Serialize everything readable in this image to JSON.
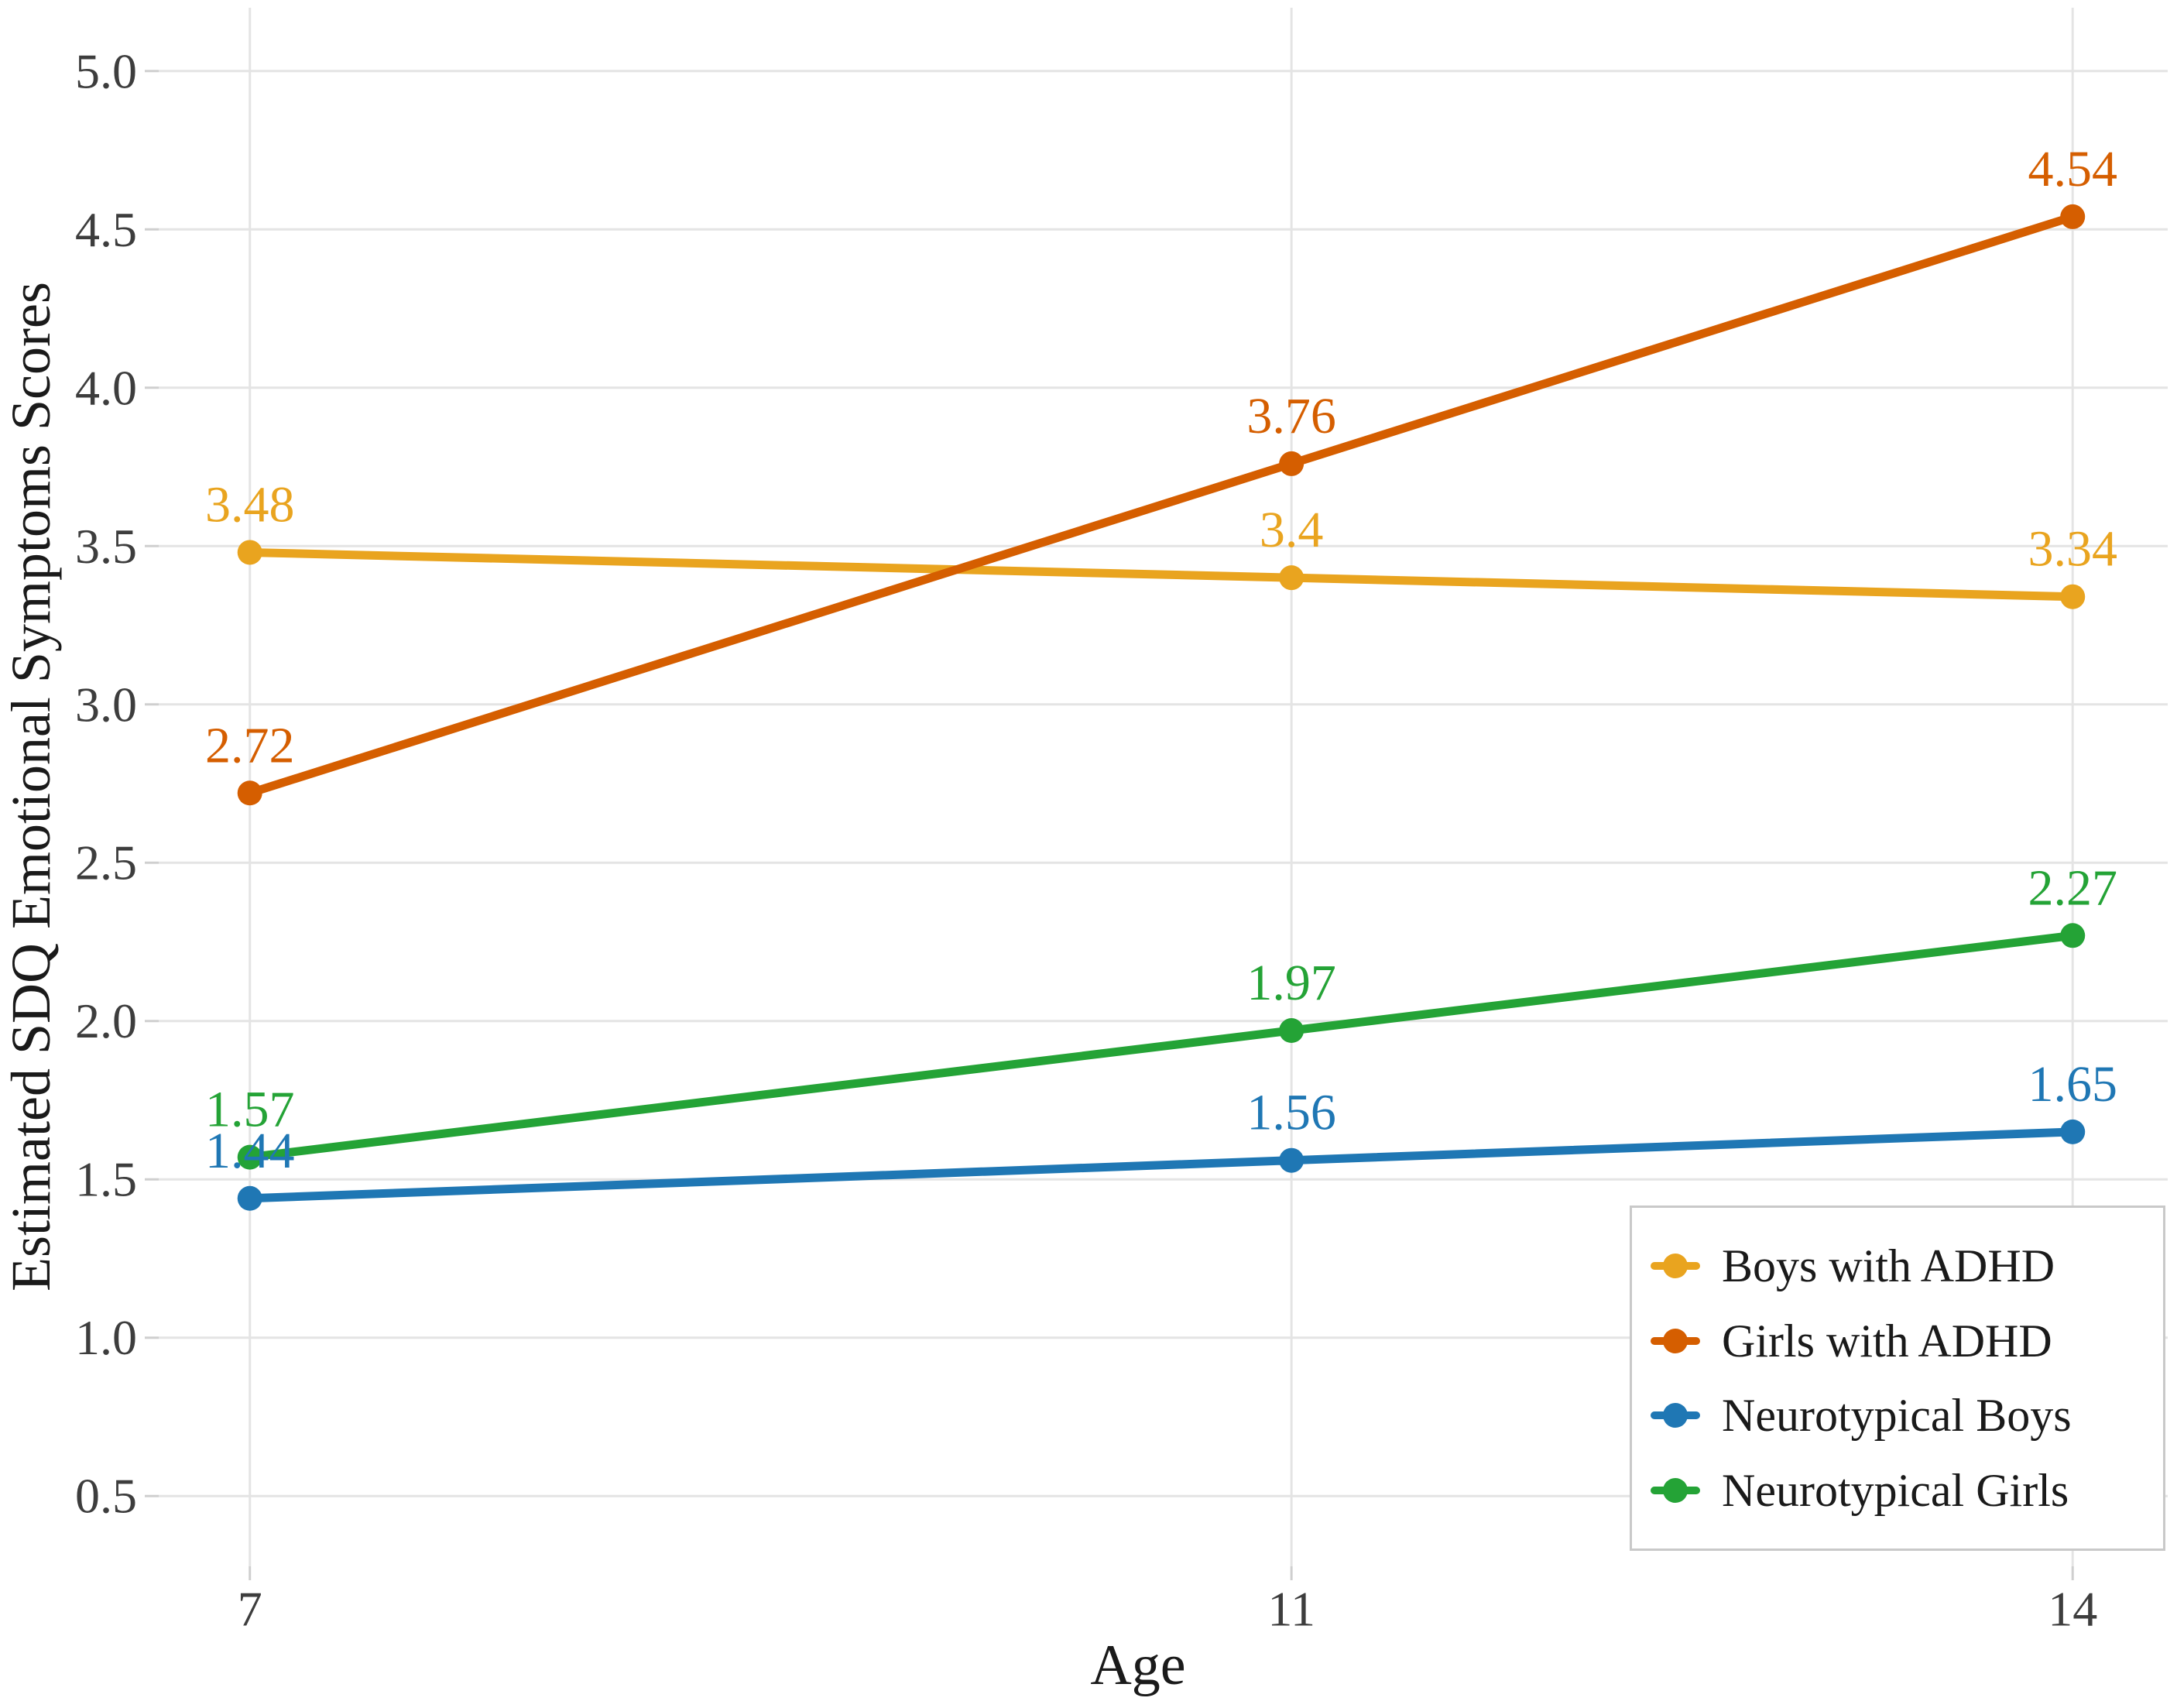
{
  "chart_data": {
    "type": "line",
    "x": [
      7,
      11,
      14
    ],
    "x_tick_labels": [
      "7",
      "11",
      "14"
    ],
    "y_tick_values": [
      0.5,
      1.0,
      1.5,
      2.0,
      2.5,
      3.0,
      3.5,
      4.0,
      4.5,
      5.0
    ],
    "y_tick_labels": [
      "0.5",
      "1.0",
      "1.5",
      "2.0",
      "2.5",
      "3.0",
      "3.5",
      "4.0",
      "4.5",
      "5.0"
    ],
    "xlabel": "Age",
    "ylabel": "Estimated SDQ Emotional Symptoms Scores",
    "xlim": [
      6.65,
      14.365
    ],
    "ylim": [
      0.278,
      5.2
    ],
    "grid": true,
    "legend_position": "inset-bottom-right",
    "series": [
      {
        "name": "Boys with ADHD",
        "color": "#E9A41F",
        "values": [
          3.48,
          3.4,
          3.34
        ],
        "labels": [
          "3.48",
          "3.4",
          "3.34"
        ]
      },
      {
        "name": "Girls with ADHD",
        "color": "#D55E00",
        "values": [
          2.72,
          3.76,
          4.54
        ],
        "labels": [
          "2.72",
          "3.76",
          "4.54"
        ]
      },
      {
        "name": "Neurotypical Boys",
        "color": "#1F77B4",
        "values": [
          1.44,
          1.56,
          1.65
        ],
        "labels": [
          "1.44",
          "1.56",
          "1.65"
        ]
      },
      {
        "name": "Neurotypical Girls",
        "color": "#24A336",
        "values": [
          1.57,
          1.97,
          2.27
        ],
        "labels": [
          "1.57",
          "1.97",
          "2.27"
        ]
      }
    ],
    "colors": {
      "background": "#FFFFFF",
      "grid": "#E4E4E4",
      "axis_tick": "#CFCFCF",
      "tick_text": "#3D3D3D",
      "axis_title_text": "#1A1A1A",
      "legend_text": "#1A1A1A",
      "legend_border": "#C9C9C9",
      "legend_background": "#FFFFFF"
    }
  }
}
